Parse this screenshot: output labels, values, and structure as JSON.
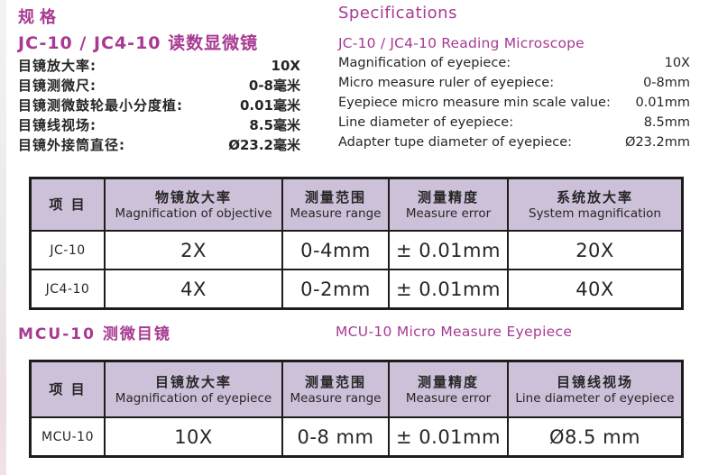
{
  "palette": {
    "accent": "#a83a92",
    "table_header_bg": "#cdc1d9",
    "table_border": "#1c1c1c",
    "text": "#262626"
  },
  "header": {
    "zh": {
      "title": "规格",
      "subtitle": "JC-10 / JC4-10 读数显微镜"
    },
    "en": {
      "title": "Specifications",
      "subtitle": "JC-10 / JC4-10 Reading Microscope"
    }
  },
  "specs": {
    "zh": [
      {
        "label": "目镜放大率:",
        "value": "10X"
      },
      {
        "label": "目镜测微尺:",
        "value": "0-8毫米"
      },
      {
        "label": "目镜测微鼓轮最小分度植:",
        "value": "0.01毫米"
      },
      {
        "label": "目镜线视场:",
        "value": "8.5毫米"
      },
      {
        "label": "目镜外接筒直径:",
        "value": "Ø23.2毫米"
      }
    ],
    "en": [
      {
        "label": "Magnification of eyepiece:",
        "value": "10X"
      },
      {
        "label": "Micro measure ruler of eyepiece:",
        "value": "0-8mm"
      },
      {
        "label": "Eyepiece micro measure min scale value:",
        "value": "0.01mm"
      },
      {
        "label": "Line diameter of eyepiece:",
        "value": "8.5mm"
      },
      {
        "label": "Adapter tupe diameter of eyepiece:",
        "value": "Ø23.2mm"
      }
    ]
  },
  "mcu": {
    "zh": "MCU-10 测微目镜",
    "en": "MCU-10  Micro Measure Eyepiece"
  },
  "tables": [
    {
      "columns": [
        {
          "zh": "项  目",
          "en": ""
        },
        {
          "zh": "物镜放大率",
          "en": "Magnification of objective"
        },
        {
          "zh": "测量范围",
          "en": "Measure range"
        },
        {
          "zh": "测量精度",
          "en": "Measure error"
        },
        {
          "zh": "系统放大率",
          "en": "System magnification"
        }
      ],
      "rows": [
        [
          "JC-10",
          "2X",
          "0-4mm",
          "± 0.01mm",
          "20X"
        ],
        [
          "JC4-10",
          "4X",
          "0-2mm",
          "± 0.01mm",
          "40X"
        ]
      ]
    },
    {
      "columns": [
        {
          "zh": "项  目",
          "en": ""
        },
        {
          "zh": "目镜放大率",
          "en": "Magnification of eyepiece"
        },
        {
          "zh": "测量范围",
          "en": "Measure range"
        },
        {
          "zh": "测量精度",
          "en": "Measure error"
        },
        {
          "zh": "目镜线视场",
          "en": "Line diameter of eyepiece"
        }
      ],
      "rows": [
        [
          "MCU-10",
          "10X",
          "0-8 mm",
          "± 0.01mm",
          "Ø8.5 mm"
        ]
      ]
    }
  ]
}
